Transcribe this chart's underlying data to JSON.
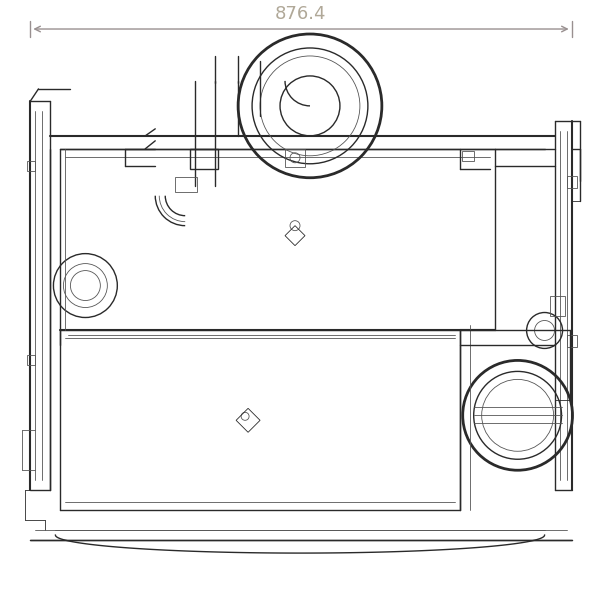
{
  "bg": "#ffffff",
  "lc": "#2a2a2a",
  "lc_med": "#555555",
  "lc_light": "#888888",
  "dim_color": "#b0a898",
  "arrow_color": "#999090",
  "dim_text": "876.4",
  "dim_font_size": 13,
  "fig_w": 6.0,
  "fig_h": 6.0,
  "lw1": 0.6,
  "lw2": 1.0,
  "lw3": 1.5,
  "lw4": 2.0
}
